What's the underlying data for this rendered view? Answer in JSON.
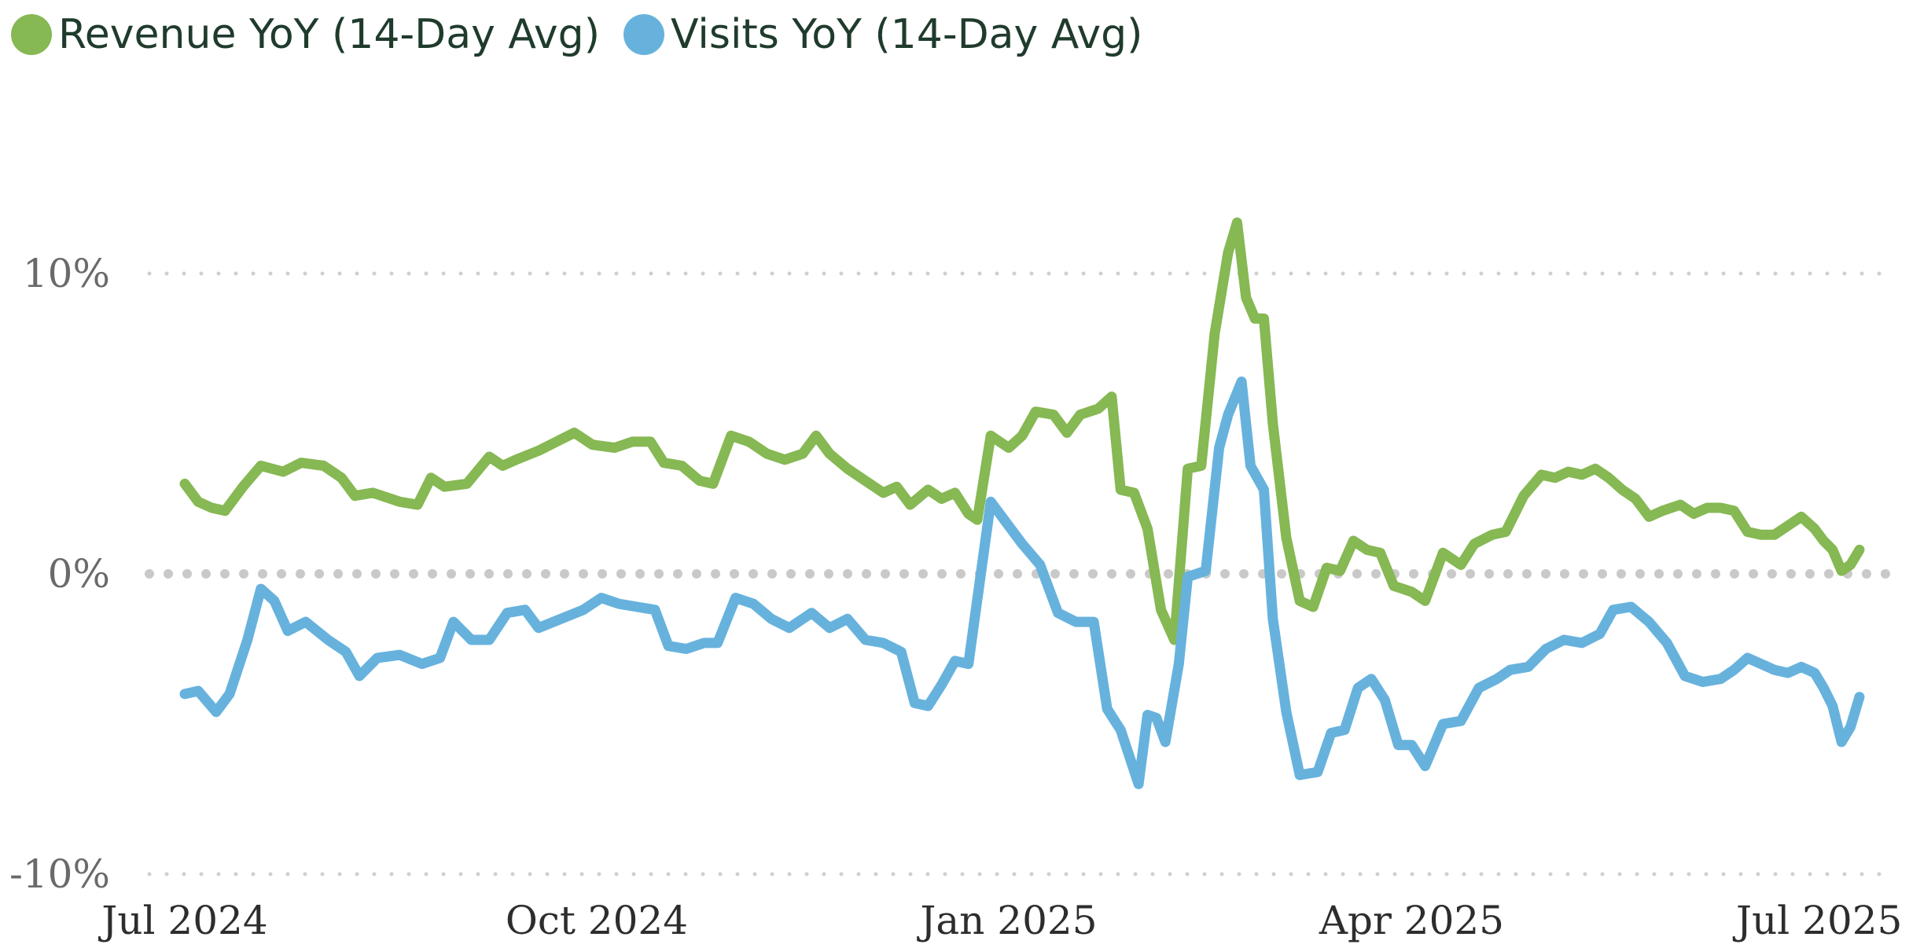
{
  "chart_data": {
    "type": "line",
    "title": "",
    "xlabel": "",
    "ylabel": "",
    "x_range": [
      "2024-07-01",
      "2025-07-10"
    ],
    "ylim": [
      -10,
      15
    ],
    "y_ticks": [
      {
        "value": -10,
        "label": "-10%"
      },
      {
        "value": 0,
        "label": "0%"
      },
      {
        "value": 10,
        "label": "10%"
      }
    ],
    "x_ticks": [
      {
        "date": "2024-07-01",
        "label": "Jul 2024"
      },
      {
        "date": "2024-10-01",
        "label": "Oct 2024"
      },
      {
        "date": "2025-01-01",
        "label": "Jan 2025"
      },
      {
        "date": "2025-04-01",
        "label": "Apr 2025"
      },
      {
        "date": "2025-07-01",
        "label": "Jul 2025"
      }
    ],
    "grid": "horizontal-dotted",
    "legend_position": "top-left",
    "series": [
      {
        "name": "Revenue YoY (14-Day Avg)",
        "color": "#86b853",
        "points": [
          [
            "2024-07-01",
            3.0
          ],
          [
            "2024-07-04",
            2.4
          ],
          [
            "2024-07-07",
            2.2
          ],
          [
            "2024-07-10",
            2.1
          ],
          [
            "2024-07-14",
            2.9
          ],
          [
            "2024-07-18",
            3.6
          ],
          [
            "2024-07-23",
            3.4
          ],
          [
            "2024-07-27",
            3.7
          ],
          [
            "2024-08-01",
            3.6
          ],
          [
            "2024-08-05",
            3.2
          ],
          [
            "2024-08-08",
            2.6
          ],
          [
            "2024-08-12",
            2.7
          ],
          [
            "2024-08-18",
            2.4
          ],
          [
            "2024-08-22",
            2.3
          ],
          [
            "2024-08-25",
            3.2
          ],
          [
            "2024-08-28",
            2.9
          ],
          [
            "2024-09-02",
            3.0
          ],
          [
            "2024-09-07",
            3.9
          ],
          [
            "2024-09-10",
            3.6
          ],
          [
            "2024-09-13",
            3.8
          ],
          [
            "2024-09-18",
            4.1
          ],
          [
            "2024-09-22",
            4.4
          ],
          [
            "2024-09-26",
            4.7
          ],
          [
            "2024-09-30",
            4.3
          ],
          [
            "2024-10-05",
            4.2
          ],
          [
            "2024-10-09",
            4.4
          ],
          [
            "2024-10-13",
            4.4
          ],
          [
            "2024-10-16",
            3.7
          ],
          [
            "2024-10-20",
            3.6
          ],
          [
            "2024-10-24",
            3.1
          ],
          [
            "2024-10-27",
            3.0
          ],
          [
            "2024-10-31",
            4.6
          ],
          [
            "2024-11-04",
            4.4
          ],
          [
            "2024-11-08",
            4.0
          ],
          [
            "2024-11-12",
            3.8
          ],
          [
            "2024-11-16",
            4.0
          ],
          [
            "2024-11-19",
            4.6
          ],
          [
            "2024-11-22",
            4.0
          ],
          [
            "2024-11-26",
            3.5
          ],
          [
            "2024-11-30",
            3.1
          ],
          [
            "2024-12-04",
            2.7
          ],
          [
            "2024-12-07",
            2.9
          ],
          [
            "2024-12-10",
            2.3
          ],
          [
            "2024-12-14",
            2.8
          ],
          [
            "2024-12-17",
            2.5
          ],
          [
            "2024-12-20",
            2.7
          ],
          [
            "2024-12-23",
            2.0
          ],
          [
            "2024-12-25",
            1.8
          ],
          [
            "2024-12-28",
            4.6
          ],
          [
            "2025-01-01",
            4.2
          ],
          [
            "2025-01-04",
            4.6
          ],
          [
            "2025-01-07",
            5.4
          ],
          [
            "2025-01-11",
            5.3
          ],
          [
            "2025-01-14",
            4.7
          ],
          [
            "2025-01-17",
            5.3
          ],
          [
            "2025-01-21",
            5.5
          ],
          [
            "2025-01-24",
            5.9
          ],
          [
            "2025-01-26",
            2.8
          ],
          [
            "2025-01-29",
            2.7
          ],
          [
            "2025-02-01",
            1.5
          ],
          [
            "2025-02-04",
            -1.2
          ],
          [
            "2025-02-07",
            -2.2
          ],
          [
            "2025-02-10",
            3.5
          ],
          [
            "2025-02-13",
            3.6
          ],
          [
            "2025-02-16",
            8.0
          ],
          [
            "2025-02-19",
            10.7
          ],
          [
            "2025-02-21",
            11.7
          ],
          [
            "2025-02-23",
            9.2
          ],
          [
            "2025-02-25",
            8.5
          ],
          [
            "2025-02-27",
            8.5
          ],
          [
            "2025-03-01",
            5.0
          ],
          [
            "2025-03-04",
            1.2
          ],
          [
            "2025-03-07",
            -0.9
          ],
          [
            "2025-03-10",
            -1.1
          ],
          [
            "2025-03-13",
            0.2
          ],
          [
            "2025-03-16",
            0.1
          ],
          [
            "2025-03-19",
            1.1
          ],
          [
            "2025-03-22",
            0.8
          ],
          [
            "2025-03-25",
            0.7
          ],
          [
            "2025-03-28",
            -0.4
          ],
          [
            "2025-04-01",
            -0.6
          ],
          [
            "2025-04-04",
            -0.9
          ],
          [
            "2025-04-08",
            0.7
          ],
          [
            "2025-04-12",
            0.3
          ],
          [
            "2025-04-15",
            1.0
          ],
          [
            "2025-04-19",
            1.3
          ],
          [
            "2025-04-22",
            1.4
          ],
          [
            "2025-04-26",
            2.6
          ],
          [
            "2025-04-30",
            3.3
          ],
          [
            "2025-05-03",
            3.2
          ],
          [
            "2025-05-06",
            3.4
          ],
          [
            "2025-05-09",
            3.3
          ],
          [
            "2025-05-12",
            3.5
          ],
          [
            "2025-05-15",
            3.2
          ],
          [
            "2025-05-18",
            2.8
          ],
          [
            "2025-05-21",
            2.5
          ],
          [
            "2025-05-24",
            1.9
          ],
          [
            "2025-05-27",
            2.1
          ],
          [
            "2025-05-31",
            2.3
          ],
          [
            "2025-06-03",
            2.0
          ],
          [
            "2025-06-06",
            2.2
          ],
          [
            "2025-06-09",
            2.2
          ],
          [
            "2025-06-12",
            2.1
          ],
          [
            "2025-06-15",
            1.4
          ],
          [
            "2025-06-18",
            1.3
          ],
          [
            "2025-06-21",
            1.3
          ],
          [
            "2025-06-24",
            1.6
          ],
          [
            "2025-06-27",
            1.9
          ],
          [
            "2025-06-30",
            1.5
          ],
          [
            "2025-07-02",
            1.1
          ],
          [
            "2025-07-04",
            0.8
          ],
          [
            "2025-07-06",
            0.1
          ],
          [
            "2025-07-08",
            0.3
          ],
          [
            "2025-07-10",
            0.8
          ]
        ]
      },
      {
        "name": "Visits YoY (14-Day Avg)",
        "color": "#67b2dd",
        "points": [
          [
            "2024-07-01",
            -4.0
          ],
          [
            "2024-07-04",
            -3.9
          ],
          [
            "2024-07-08",
            -4.6
          ],
          [
            "2024-07-11",
            -4.0
          ],
          [
            "2024-07-15",
            -2.2
          ],
          [
            "2024-07-18",
            -0.5
          ],
          [
            "2024-07-21",
            -0.9
          ],
          [
            "2024-07-24",
            -1.9
          ],
          [
            "2024-07-28",
            -1.6
          ],
          [
            "2024-08-02",
            -2.2
          ],
          [
            "2024-08-06",
            -2.6
          ],
          [
            "2024-08-09",
            -3.4
          ],
          [
            "2024-08-13",
            -2.8
          ],
          [
            "2024-08-18",
            -2.7
          ],
          [
            "2024-08-23",
            -3.0
          ],
          [
            "2024-08-27",
            -2.8
          ],
          [
            "2024-08-30",
            -1.6
          ],
          [
            "2024-09-03",
            -2.2
          ],
          [
            "2024-09-07",
            -2.2
          ],
          [
            "2024-09-11",
            -1.3
          ],
          [
            "2024-09-15",
            -1.2
          ],
          [
            "2024-09-18",
            -1.8
          ],
          [
            "2024-09-23",
            -1.5
          ],
          [
            "2024-09-28",
            -1.2
          ],
          [
            "2024-10-02",
            -0.8
          ],
          [
            "2024-10-06",
            -1.0
          ],
          [
            "2024-10-10",
            -1.1
          ],
          [
            "2024-10-14",
            -1.2
          ],
          [
            "2024-10-17",
            -2.4
          ],
          [
            "2024-10-21",
            -2.5
          ],
          [
            "2024-10-25",
            -2.3
          ],
          [
            "2024-10-28",
            -2.3
          ],
          [
            "2024-11-01",
            -0.8
          ],
          [
            "2024-11-05",
            -1.0
          ],
          [
            "2024-11-09",
            -1.5
          ],
          [
            "2024-11-13",
            -1.8
          ],
          [
            "2024-11-18",
            -1.3
          ],
          [
            "2024-11-22",
            -1.8
          ],
          [
            "2024-11-26",
            -1.5
          ],
          [
            "2024-11-30",
            -2.2
          ],
          [
            "2024-12-04",
            -2.3
          ],
          [
            "2024-12-08",
            -2.6
          ],
          [
            "2024-12-11",
            -4.3
          ],
          [
            "2024-12-14",
            -4.4
          ],
          [
            "2024-12-17",
            -3.7
          ],
          [
            "2024-12-20",
            -2.9
          ],
          [
            "2024-12-23",
            -3.0
          ],
          [
            "2024-12-28",
            2.4
          ],
          [
            "2025-01-01",
            1.6
          ],
          [
            "2025-01-04",
            1.0
          ],
          [
            "2025-01-08",
            0.3
          ],
          [
            "2025-01-12",
            -1.3
          ],
          [
            "2025-01-16",
            -1.6
          ],
          [
            "2025-01-20",
            -1.6
          ],
          [
            "2025-01-23",
            -4.5
          ],
          [
            "2025-01-26",
            -5.2
          ],
          [
            "2025-01-30",
            -7.0
          ],
          [
            "2025-02-01",
            -4.7
          ],
          [
            "2025-02-03",
            -4.8
          ],
          [
            "2025-02-05",
            -5.6
          ],
          [
            "2025-02-08",
            -3.0
          ],
          [
            "2025-02-10",
            -0.1
          ],
          [
            "2025-02-14",
            0.1
          ],
          [
            "2025-02-17",
            4.2
          ],
          [
            "2025-02-19",
            5.3
          ],
          [
            "2025-02-22",
            6.4
          ],
          [
            "2025-02-24",
            3.6
          ],
          [
            "2025-02-27",
            2.8
          ],
          [
            "2025-03-01",
            -1.5
          ],
          [
            "2025-03-04",
            -4.6
          ],
          [
            "2025-03-07",
            -6.7
          ],
          [
            "2025-03-11",
            -6.6
          ],
          [
            "2025-03-14",
            -5.3
          ],
          [
            "2025-03-17",
            -5.2
          ],
          [
            "2025-03-20",
            -3.8
          ],
          [
            "2025-03-23",
            -3.5
          ],
          [
            "2025-03-26",
            -4.2
          ],
          [
            "2025-03-29",
            -5.7
          ],
          [
            "2025-04-01",
            -5.7
          ],
          [
            "2025-04-04",
            -6.4
          ],
          [
            "2025-04-08",
            -5.0
          ],
          [
            "2025-04-12",
            -4.9
          ],
          [
            "2025-04-16",
            -3.8
          ],
          [
            "2025-04-20",
            -3.5
          ],
          [
            "2025-04-23",
            -3.2
          ],
          [
            "2025-04-27",
            -3.1
          ],
          [
            "2025-05-01",
            -2.5
          ],
          [
            "2025-05-05",
            -2.2
          ],
          [
            "2025-05-09",
            -2.3
          ],
          [
            "2025-05-13",
            -2.0
          ],
          [
            "2025-05-16",
            -1.2
          ],
          [
            "2025-05-20",
            -1.1
          ],
          [
            "2025-05-24",
            -1.6
          ],
          [
            "2025-05-28",
            -2.3
          ],
          [
            "2025-06-01",
            -3.4
          ],
          [
            "2025-06-05",
            -3.6
          ],
          [
            "2025-06-09",
            -3.5
          ],
          [
            "2025-06-12",
            -3.2
          ],
          [
            "2025-06-15",
            -2.8
          ],
          [
            "2025-06-18",
            -3.0
          ],
          [
            "2025-06-21",
            -3.2
          ],
          [
            "2025-06-24",
            -3.3
          ],
          [
            "2025-06-27",
            -3.1
          ],
          [
            "2025-06-30",
            -3.3
          ],
          [
            "2025-07-02",
            -3.8
          ],
          [
            "2025-07-04",
            -4.4
          ],
          [
            "2025-07-06",
            -5.6
          ],
          [
            "2025-07-08",
            -5.1
          ],
          [
            "2025-07-10",
            -4.1
          ]
        ]
      }
    ]
  }
}
